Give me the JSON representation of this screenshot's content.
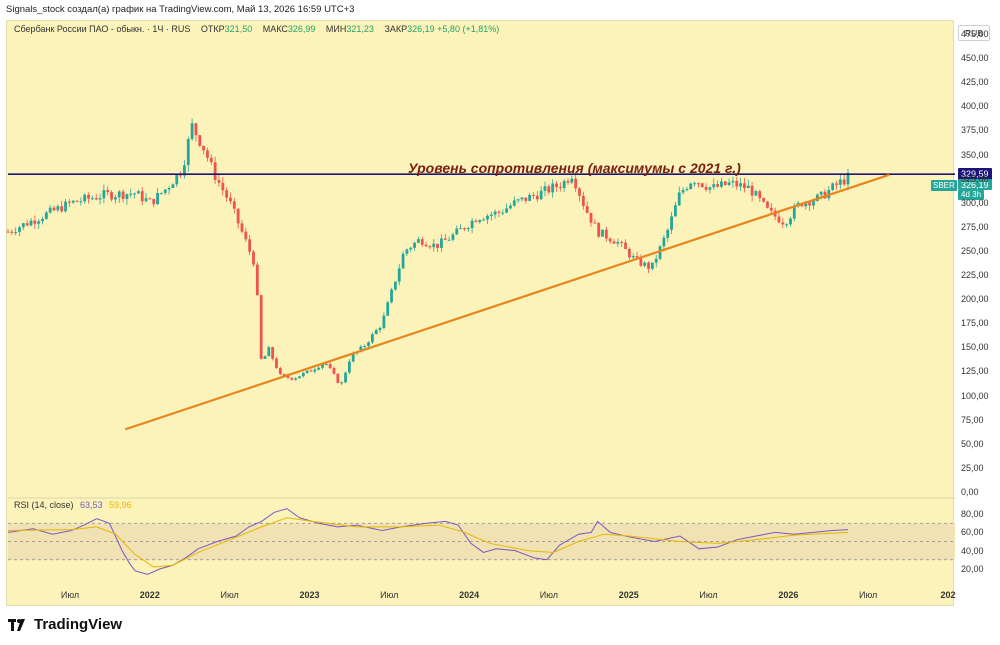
{
  "caption": "Signals_stock создал(а) график на TradingView.com, Май 13, 2026 16:59 UTC+3",
  "legend": {
    "symbol": "Сбербанк России ПАО - обыкн. · 1Ч · RUS",
    "open_label": "ОТКР",
    "open": "321,50",
    "high_label": "МАКС",
    "high": "326,99",
    "low_label": "МИН",
    "low": "321,23",
    "close_label": "ЗАКР",
    "close": "326,19",
    "change": "+5,80 (+1,81%)"
  },
  "currency": "RUB",
  "annotation": "Уровень сопротивления (максимумы с 2021 г.)",
  "tags": {
    "resistance": "329,59",
    "last": "326,19",
    "time_left": "4d 3h",
    "ticker": "SBER"
  },
  "rsi_legend": {
    "name": "RSI (14, close)",
    "rsi": "63,53",
    "ma": "59,96"
  },
  "brand": "TradingView",
  "colors": {
    "background": "#fbf3ba",
    "up": "#26a69a",
    "down": "#ef5350",
    "resistance": "#1c1478",
    "trendline": "#e8851c",
    "rsi": "#7e57c2",
    "rsi_ma": "#e6b800"
  },
  "chart_data": {
    "type": "candlestick",
    "x_ticks": [
      "Июл",
      "2022",
      "Июл",
      "2023",
      "Июл",
      "2024",
      "Июл",
      "2025",
      "Июл",
      "2026",
      "Июл",
      "202"
    ],
    "x_ticks_bold": [
      false,
      true,
      false,
      true,
      false,
      true,
      false,
      true,
      false,
      true,
      false,
      true
    ],
    "y_ticks": [
      "0,00",
      "25,00",
      "50,00",
      "75,00",
      "100,00",
      "125,00",
      "150,00",
      "175,00",
      "200,00",
      "225,00",
      "250,00",
      "275,00",
      "300,00",
      "325,00",
      "350,00",
      "375,00",
      "400,00",
      "425,00",
      "450,00",
      "475,00"
    ],
    "ylim": [
      0,
      475
    ],
    "price_path": [
      [
        0,
        270
      ],
      [
        10,
        285
      ],
      [
        20,
        300
      ],
      [
        30,
        308
      ],
      [
        40,
        310
      ],
      [
        45,
        300
      ],
      [
        50,
        315
      ],
      [
        55,
        335
      ],
      [
        58,
        380
      ],
      [
        62,
        355
      ],
      [
        65,
        330
      ],
      [
        70,
        300
      ],
      [
        75,
        260
      ],
      [
        78,
        235
      ],
      [
        80,
        130
      ],
      [
        82,
        150
      ],
      [
        86,
        120
      ],
      [
        90,
        118
      ],
      [
        95,
        125
      ],
      [
        100,
        135
      ],
      [
        105,
        110
      ],
      [
        108,
        140
      ],
      [
        112,
        150
      ],
      [
        118,
        175
      ],
      [
        125,
        250
      ],
      [
        130,
        262
      ],
      [
        135,
        255
      ],
      [
        140,
        265
      ],
      [
        148,
        285
      ],
      [
        155,
        290
      ],
      [
        160,
        300
      ],
      [
        168,
        310
      ],
      [
        175,
        320
      ],
      [
        178,
        330
      ],
      [
        182,
        295
      ],
      [
        186,
        270
      ],
      [
        192,
        260
      ],
      [
        198,
        240
      ],
      [
        203,
        232
      ],
      [
        208,
        270
      ],
      [
        212,
        310
      ],
      [
        216,
        325
      ],
      [
        222,
        315
      ],
      [
        228,
        320
      ],
      [
        234,
        315
      ],
      [
        240,
        290
      ],
      [
        245,
        280
      ],
      [
        250,
        300
      ],
      [
        256,
        305
      ],
      [
        262,
        320
      ],
      [
        265,
        326
      ]
    ],
    "path_range": [
      0,
      265
    ],
    "resistance_level": 329.59,
    "trendline": [
      [
        37,
        65
      ],
      [
        278,
        329
      ]
    ],
    "rsi_ticks": [
      "80,00",
      "60,00",
      "40,00",
      "20,00"
    ],
    "rsi_ylim": [
      10,
      90
    ],
    "rsi_bands": [
      70,
      50,
      30
    ],
    "rsi_path": [
      [
        0,
        60
      ],
      [
        8,
        64
      ],
      [
        14,
        58
      ],
      [
        20,
        62
      ],
      [
        24,
        68
      ],
      [
        28,
        75
      ],
      [
        32,
        70
      ],
      [
        34,
        55
      ],
      [
        36,
        40
      ],
      [
        38,
        28
      ],
      [
        40,
        18
      ],
      [
        44,
        14
      ],
      [
        48,
        20
      ],
      [
        52,
        24
      ],
      [
        56,
        32
      ],
      [
        60,
        42
      ],
      [
        66,
        50
      ],
      [
        72,
        56
      ],
      [
        76,
        66
      ],
      [
        80,
        72
      ],
      [
        84,
        82
      ],
      [
        88,
        86
      ],
      [
        92,
        76
      ],
      [
        98,
        70
      ],
      [
        104,
        66
      ],
      [
        110,
        68
      ],
      [
        118,
        62
      ],
      [
        124,
        66
      ],
      [
        132,
        70
      ],
      [
        138,
        72
      ],
      [
        142,
        68
      ],
      [
        146,
        48
      ],
      [
        150,
        38
      ],
      [
        154,
        42
      ],
      [
        160,
        40
      ],
      [
        166,
        32
      ],
      [
        170,
        30
      ],
      [
        174,
        46
      ],
      [
        180,
        58
      ],
      [
        184,
        60
      ],
      [
        186,
        72
      ],
      [
        190,
        60
      ],
      [
        196,
        55
      ],
      [
        204,
        50
      ],
      [
        212,
        56
      ],
      [
        218,
        42
      ],
      [
        224,
        44
      ],
      [
        230,
        52
      ],
      [
        236,
        56
      ],
      [
        242,
        60
      ],
      [
        248,
        58
      ],
      [
        254,
        60
      ],
      [
        260,
        62
      ],
      [
        265,
        63
      ]
    ],
    "rsi_ma_path": [
      [
        0,
        62
      ],
      [
        20,
        63
      ],
      [
        28,
        66
      ],
      [
        34,
        58
      ],
      [
        40,
        36
      ],
      [
        46,
        22
      ],
      [
        52,
        24
      ],
      [
        60,
        38
      ],
      [
        70,
        52
      ],
      [
        80,
        66
      ],
      [
        88,
        76
      ],
      [
        96,
        72
      ],
      [
        110,
        66
      ],
      [
        124,
        66
      ],
      [
        136,
        68
      ],
      [
        144,
        60
      ],
      [
        152,
        48
      ],
      [
        164,
        40
      ],
      [
        172,
        38
      ],
      [
        180,
        50
      ],
      [
        188,
        58
      ],
      [
        196,
        56
      ],
      [
        212,
        50
      ],
      [
        224,
        48
      ],
      [
        236,
        52
      ],
      [
        248,
        57
      ],
      [
        265,
        60
      ]
    ]
  }
}
